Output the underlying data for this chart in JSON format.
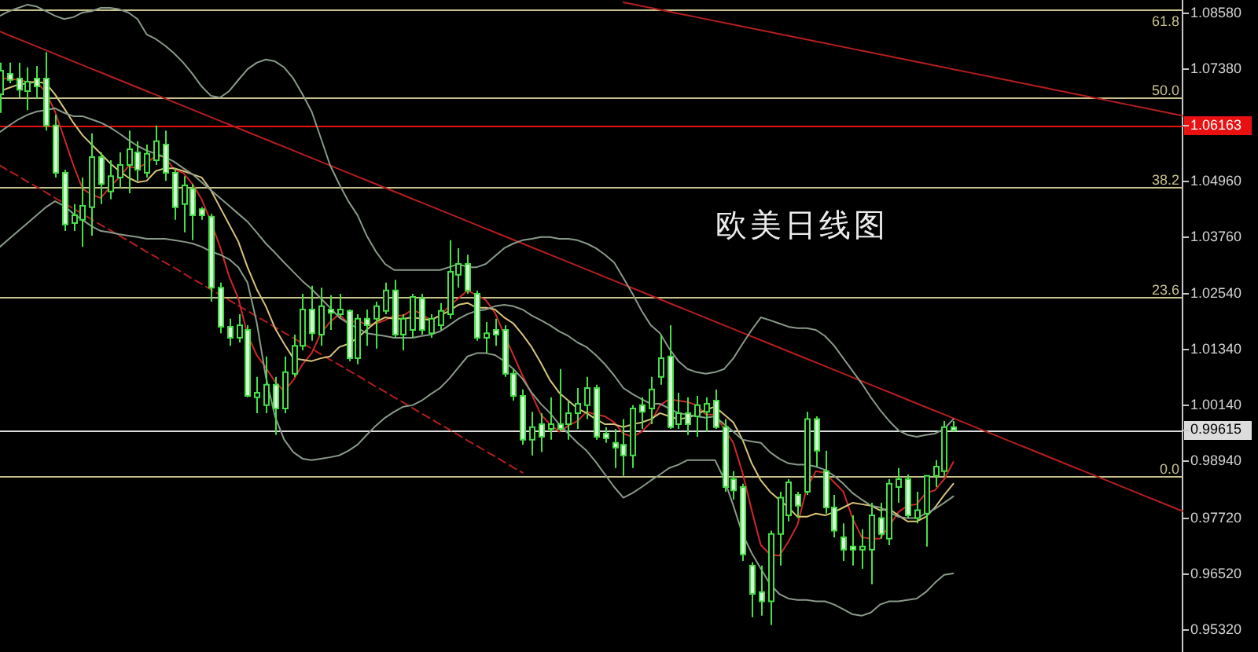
{
  "chart_data": {
    "type": "candlestick",
    "title": "欧美日线图",
    "categories": [
      null,
      null,
      null,
      null,
      null,
      null,
      null,
      null,
      null,
      null,
      null,
      null,
      null,
      null,
      null,
      null,
      null,
      null,
      null,
      null,
      null,
      null,
      null,
      null,
      null,
      null,
      null,
      null,
      null,
      null,
      null,
      null,
      null,
      null,
      null,
      null,
      null,
      null,
      null,
      null,
      null,
      null,
      null,
      null,
      null,
      null,
      null,
      null,
      null,
      null,
      null,
      null,
      null,
      null,
      null,
      null,
      null,
      null,
      null,
      null,
      null,
      null,
      null,
      null,
      null,
      null,
      null,
      null,
      null,
      null,
      null,
      null,
      null,
      null,
      null,
      null,
      null,
      null,
      null,
      null,
      null,
      null,
      null,
      null,
      null,
      null,
      null,
      null,
      null,
      null,
      null,
      null,
      null,
      null,
      null,
      null,
      null,
      null,
      null,
      null,
      null,
      null,
      null,
      null,
      null,
      null,
      null,
      null,
      null,
      null,
      null,
      null,
      null,
      null,
      null,
      null,
      null,
      null,
      null,
      null,
      null,
      null,
      null,
      null,
      null,
      null,
      null,
      null,
      null,
      null
    ],
    "color": "#45e045",
    "ohlc": [
      [
        1.0684,
        1.0752,
        1.0644,
        1.0735
      ],
      [
        1.0728,
        1.0752,
        1.0708,
        1.0715
      ],
      [
        1.0718,
        1.0752,
        1.0677,
        1.0694
      ],
      [
        1.0691,
        1.0742,
        1.065,
        1.0711
      ],
      [
        1.0718,
        1.0745,
        1.0674,
        1.0701
      ],
      [
        1.0718,
        1.0775,
        1.0606,
        1.0617
      ],
      [
        1.0617,
        1.064,
        1.0505,
        1.0515
      ],
      [
        1.0515,
        1.0522,
        1.039,
        1.0404
      ],
      [
        1.0407,
        1.0448,
        1.039,
        1.0424
      ],
      [
        1.0414,
        1.0505,
        1.0356,
        1.0444
      ],
      [
        1.0441,
        1.06,
        1.038,
        1.0549
      ],
      [
        1.0549,
        1.0559,
        1.0448,
        1.0491
      ],
      [
        1.0475,
        1.0542,
        1.0458,
        1.0508
      ],
      [
        1.0505,
        1.0559,
        1.0481,
        1.0532
      ],
      [
        1.0532,
        1.0606,
        1.0471,
        1.0566
      ],
      [
        1.0559,
        1.0583,
        1.0498,
        1.0522
      ],
      [
        1.0515,
        1.0576,
        1.0505,
        1.0556
      ],
      [
        1.0542,
        1.0617,
        1.0532,
        1.0583
      ],
      [
        1.0576,
        1.0606,
        1.0498,
        1.0515
      ],
      [
        1.0515,
        1.0525,
        1.0414,
        1.0441
      ],
      [
        1.0448,
        1.0508,
        1.0387,
        1.0488
      ],
      [
        1.0481,
        1.0491,
        1.037,
        1.0424
      ],
      [
        1.0437,
        1.0441,
        1.0414,
        1.0424
      ],
      [
        1.0421,
        1.0427,
        1.0238,
        1.0268
      ],
      [
        1.0268,
        1.0279,
        1.017,
        1.0184
      ],
      [
        1.0184,
        1.0201,
        1.0143,
        1.016
      ],
      [
        1.016,
        1.0211,
        1.015,
        1.0187
      ],
      [
        1.0177,
        1.0187,
        1.0032,
        1.0035
      ],
      [
        1.0032,
        1.0076,
        0.9998,
        1.0042
      ],
      [
        1.0015,
        1.012,
        0.9998,
        1.0059
      ],
      [
        1.0059,
        1.0076,
        0.9951,
        1.0008
      ],
      [
        1.0008,
        1.012,
        0.9998,
        1.0086
      ],
      [
        1.0083,
        1.0167,
        1.0076,
        1.0143
      ],
      [
        1.0143,
        1.0255,
        1.0133,
        1.0221
      ],
      [
        1.0221,
        1.0272,
        1.0154,
        1.017
      ],
      [
        1.0167,
        1.0268,
        1.0143,
        1.0228
      ],
      [
        1.0221,
        1.0252,
        1.0177,
        1.0214
      ],
      [
        1.0211,
        1.0255,
        1.0204,
        1.0221
      ],
      [
        1.0218,
        1.0221,
        1.011,
        1.0116
      ],
      [
        1.0116,
        1.0211,
        1.0103,
        1.0201
      ],
      [
        1.0201,
        1.0221,
        1.0143,
        1.0187
      ],
      [
        1.0201,
        1.0238,
        1.0137,
        1.0228
      ],
      [
        1.0218,
        1.0279,
        1.0211,
        1.0262
      ],
      [
        1.0262,
        1.0285,
        1.016,
        1.0167
      ],
      [
        1.0167,
        1.0211,
        1.0133,
        1.0201
      ],
      [
        1.0177,
        1.0255,
        1.016,
        1.0248
      ],
      [
        1.0245,
        1.0255,
        1.0167,
        1.0177
      ],
      [
        1.017,
        1.0211,
        1.016,
        1.0201
      ],
      [
        1.0187,
        1.0235,
        1.0177,
        1.0218
      ],
      [
        1.0211,
        1.037,
        1.0201,
        1.0302
      ],
      [
        1.0296,
        1.0353,
        1.0268,
        1.0319
      ],
      [
        1.0319,
        1.0339,
        1.0255,
        1.0262
      ],
      [
        1.0255,
        1.0262,
        1.0154,
        1.016
      ],
      [
        1.016,
        1.0194,
        1.0127,
        1.017
      ],
      [
        1.0177,
        1.0201,
        1.0143,
        1.0167
      ],
      [
        1.0177,
        1.0187,
        1.0076,
        1.0083
      ],
      [
        1.0083,
        1.0093,
        1.0025,
        1.0035
      ],
      [
        1.0035,
        1.0049,
        0.993,
        0.9941
      ],
      [
        0.9941,
        1.0001,
        0.9907,
        0.9968
      ],
      [
        0.9974,
        0.9998,
        0.9914,
        0.9947
      ],
      [
        0.9964,
        1.0032,
        0.9941,
        0.9974
      ],
      [
        0.9974,
        1.0093,
        0.9958,
        0.9964
      ],
      [
        0.9974,
        1.0025,
        0.9941,
        0.9998
      ],
      [
        0.9998,
        1.0052,
        0.9964,
        1.0018
      ],
      [
        1.0015,
        1.0076,
        0.9985,
        1.0052
      ],
      [
        1.0052,
        1.0059,
        0.9941,
        0.9947
      ],
      [
        0.9954,
        0.9968,
        0.9934,
        0.9944
      ],
      [
        0.9934,
        0.9964,
        0.988,
        0.9924
      ],
      [
        0.993,
        0.9985,
        0.9863,
        0.9907
      ],
      [
        0.9907,
        1.0015,
        0.988,
        1.0008
      ],
      [
        1.0015,
        1.0032,
        0.9964,
        1.0001
      ],
      [
        1.0008,
        1.0076,
        0.9974,
        1.0049
      ],
      [
        1.0076,
        1.0167,
        1.0059,
        1.0116
      ],
      [
        1.012,
        1.0187,
        0.9964,
        0.9968
      ],
      [
        0.9974,
        1.0042,
        0.9964,
        0.9998
      ],
      [
        0.9998,
        1.0032,
        0.9951,
        0.9974
      ],
      [
        0.9991,
        1.0035,
        0.9947,
        1.0015
      ],
      [
        1.0001,
        1.0032,
        0.9958,
        1.0018
      ],
      [
        1.0025,
        1.0049,
        0.9964,
        0.9968
      ],
      [
        0.9968,
        0.9985,
        0.9829,
        0.9839
      ],
      [
        0.9856,
        0.9873,
        0.9812,
        0.9832
      ],
      [
        0.9839,
        0.9846,
        0.968,
        0.9694
      ],
      [
        0.967,
        0.9677,
        0.9559,
        0.9609
      ],
      [
        0.9613,
        0.967,
        0.9562,
        0.9593
      ],
      [
        0.9593,
        0.9745,
        0.9542,
        0.9738
      ],
      [
        0.9738,
        0.9829,
        0.967,
        0.9816
      ],
      [
        0.9778,
        0.9856,
        0.9765,
        0.9849
      ],
      [
        0.9822,
        0.9829,
        0.9772,
        0.9799
      ],
      [
        0.9829,
        1.0001,
        0.9822,
        0.9985
      ],
      [
        0.9985,
        0.9991,
        0.9883,
        0.9917
      ],
      [
        0.9873,
        0.9917,
        0.9782,
        0.9795
      ],
      [
        0.9795,
        0.9822,
        0.9731,
        0.9745
      ],
      [
        0.9731,
        0.9761,
        0.968,
        0.9704
      ],
      [
        0.9711,
        0.9778,
        0.967,
        0.9704
      ],
      [
        0.9704,
        0.9748,
        0.9663,
        0.9711
      ],
      [
        0.9704,
        0.9805,
        0.963,
        0.9778
      ],
      [
        0.9772,
        0.9805,
        0.9728,
        0.9738
      ],
      [
        0.9728,
        0.9856,
        0.9714,
        0.9846
      ],
      [
        0.9839,
        0.988,
        0.9805,
        0.9856
      ],
      [
        0.9856,
        0.9866,
        0.9772,
        0.9778
      ],
      [
        0.9772,
        0.9829,
        0.9761,
        0.9789
      ],
      [
        0.9782,
        0.9863,
        0.9711,
        0.9863
      ],
      [
        0.9863,
        0.9897,
        0.9839,
        0.9883
      ],
      [
        0.9873,
        0.9981,
        0.9863,
        0.9968
      ],
      [
        0.9968,
        0.9981,
        0.9958,
        0.99615
      ],
      null,
      null,
      null,
      null,
      null,
      null,
      null,
      null,
      null,
      null,
      null,
      null,
      null,
      null,
      null,
      null,
      null,
      null,
      null,
      null,
      null,
      null,
      null,
      null,
      null
    ],
    "series": [
      {
        "type": "line",
        "color": "#8a9a8a",
        "values": [
          1.0853,
          1.0863,
          1.087,
          1.0877,
          1.0873,
          1.0863,
          1.0853,
          1.0846,
          1.085,
          1.086,
          1.0863,
          1.087,
          1.087,
          1.0867,
          1.086,
          1.0846,
          1.0813,
          1.0803,
          1.0789,
          1.0772,
          1.0752,
          1.0728,
          1.0701,
          1.0681,
          1.0677,
          1.0691,
          1.0715,
          1.0738,
          1.0752,
          1.0759,
          1.0755,
          1.0742,
          1.0718,
          1.0684,
          1.0647,
          1.059,
          1.0532,
          1.0491,
          1.0454,
          1.0424,
          1.038,
          1.0346,
          1.0319,
          1.0306,
          1.0306,
          1.0306,
          1.0306,
          1.0306,
          1.0306,
          1.0312,
          1.0319,
          1.0312,
          1.0312,
          1.0319,
          1.0336,
          1.0353,
          1.0363,
          1.037,
          1.0373,
          1.0377,
          1.0377,
          1.0373,
          1.0373,
          1.037,
          1.0363,
          1.0353,
          1.0339,
          1.0322,
          1.0289,
          1.0255,
          1.0218,
          1.0187,
          1.017,
          1.0137,
          1.011,
          1.0093,
          1.0086,
          1.0083,
          1.0086,
          1.0093,
          1.0116,
          1.0147,
          1.0177,
          1.0204,
          1.0198,
          1.0191,
          1.0184,
          1.0181,
          1.0181,
          1.0177,
          1.0164,
          1.0143,
          1.0116,
          1.0089,
          1.0062,
          1.0032,
          1.0005,
          0.9981,
          0.9961,
          0.9951,
          0.9947,
          0.9951,
          0.9954,
          0.9964,
          0.9985,
          null,
          null,
          null,
          null,
          null,
          null,
          null,
          null,
          null,
          null,
          null,
          null,
          null,
          null,
          null,
          null,
          null,
          null,
          null,
          null,
          null,
          null,
          null,
          null,
          null
        ]
      },
      {
        "type": "line",
        "color": "#8a9a8a",
        "values": [
          1.0603,
          1.0617,
          1.063,
          1.064,
          1.0647,
          1.065,
          1.0654,
          1.0644,
          1.0637,
          1.0637,
          1.063,
          1.0623,
          1.0613,
          1.06,
          1.0586,
          1.0573,
          1.0563,
          1.0556,
          1.0549,
          1.0539,
          1.0525,
          1.0512,
          1.0495,
          1.0478,
          1.0461,
          1.0444,
          1.0427,
          1.041,
          1.0387,
          1.0363,
          1.0343,
          1.0322,
          1.0302,
          1.0282,
          1.0265,
          1.0245,
          1.0225,
          1.0204,
          1.0191,
          1.0181,
          1.017,
          1.0167,
          1.0164,
          1.016,
          1.016,
          1.016,
          1.0164,
          1.0167,
          1.0174,
          1.0187,
          1.0201,
          1.0211,
          1.0218,
          1.0221,
          1.0228,
          1.0231,
          1.0228,
          1.0221,
          1.0208,
          1.0198,
          1.0187,
          1.0174,
          1.0164,
          1.015,
          1.014,
          1.0123,
          1.0103,
          1.0079,
          1.0052,
          1.0039,
          1.0028,
          1.0018,
          1.0018,
          1.0008,
          0.9998,
          0.9995,
          0.9991,
          0.9988,
          0.9991,
          0.9974,
          0.9958,
          0.9941,
          0.9937,
          0.9934,
          0.9914,
          0.99,
          0.989,
          0.9887,
          0.9887,
          0.9883,
          0.9876,
          0.9863,
          0.9846,
          0.9826,
          0.9812,
          0.9799,
          0.9795,
          0.9785,
          0.9775,
          0.9772,
          0.9772,
          0.9782,
          0.9792,
          0.9805,
          0.9819,
          null,
          null,
          null,
          null,
          null,
          null,
          null,
          null,
          null,
          null,
          null,
          null,
          null,
          null,
          null,
          null,
          null,
          null,
          null,
          null,
          null,
          null,
          null,
          null,
          null
        ]
      },
      {
        "type": "line",
        "color": "#8a9a8a",
        "values": [
          1.0356,
          1.0373,
          1.039,
          1.0407,
          1.0424,
          1.0441,
          1.0454,
          1.0444,
          1.0427,
          1.0414,
          1.04,
          1.039,
          1.0387,
          1.0383,
          1.038,
          1.0377,
          1.0373,
          1.0373,
          1.0373,
          1.037,
          1.0367,
          1.0363,
          1.0356,
          1.0346,
          1.0339,
          1.0329,
          1.0312,
          1.0279,
          1.0194,
          1.0076,
          0.9991,
          0.9941,
          0.9914,
          0.99,
          0.9897,
          0.99,
          0.9903,
          0.9907,
          0.9917,
          0.993,
          0.9951,
          0.9971,
          0.9988,
          1.0001,
          1.0012,
          1.0015,
          1.0025,
          1.0039,
          1.0052,
          1.0072,
          1.0096,
          1.012,
          1.0127,
          1.0127,
          1.0123,
          1.011,
          1.0093,
          1.0072,
          1.0042,
          1.0018,
          0.9998,
          0.9974,
          0.9954,
          0.9934,
          0.9917,
          0.9893,
          0.9866,
          0.9839,
          0.9816,
          0.9826,
          0.9839,
          0.9853,
          0.9866,
          0.988,
          0.9887,
          0.9897,
          0.9897,
          0.9897,
          0.9897,
          0.9856,
          0.9799,
          0.9738,
          0.9697,
          0.9663,
          0.963,
          0.9609,
          0.9599,
          0.9596,
          0.9596,
          0.9593,
          0.9593,
          0.9586,
          0.9576,
          0.9565,
          0.9562,
          0.9569,
          0.9586,
          0.9593,
          0.9593,
          0.9596,
          0.9599,
          0.9613,
          0.9633,
          0.965,
          0.9653,
          null,
          null,
          null,
          null,
          null,
          null,
          null,
          null,
          null,
          null,
          null,
          null,
          null,
          null,
          null,
          null,
          null,
          null,
          null,
          null,
          null,
          null,
          null,
          null,
          null
        ]
      },
      {
        "type": "line",
        "color": "#d8c47a",
        "values": [
          1.0691,
          1.0698,
          1.0705,
          1.0708,
          1.0711,
          1.0708,
          1.0684,
          1.0654,
          1.0623,
          1.0596,
          1.0576,
          1.0556,
          1.0536,
          1.0519,
          1.0505,
          1.0495,
          1.0498,
          1.0519,
          1.0525,
          1.0525,
          1.0519,
          1.0512,
          1.0505,
          1.0478,
          1.0441,
          1.0404,
          1.0367,
          1.0312,
          1.0265,
          1.0228,
          1.0181,
          1.0147,
          1.0116,
          1.0113,
          1.011,
          1.0116,
          1.012,
          1.014,
          1.0147,
          1.016,
          1.0177,
          1.0194,
          1.0204,
          1.0201,
          1.0201,
          1.0204,
          1.0201,
          1.0198,
          1.0208,
          1.0218,
          1.0231,
          1.0235,
          1.0225,
          1.0225,
          1.0221,
          1.0204,
          1.0191,
          1.0167,
          1.014,
          1.0106,
          1.0069,
          1.0042,
          1.0025,
          1.0008,
          0.9998,
          0.9985,
          0.9974,
          0.9974,
          0.9968,
          0.9974,
          0.9978,
          0.9985,
          0.9998,
          0.9991,
          0.9985,
          0.9988,
          0.9995,
          1.0005,
          1.0012,
          0.9995,
          0.9978,
          0.9941,
          0.989,
          0.9853,
          0.9829,
          0.9812,
          0.9795,
          0.9775,
          0.9775,
          0.9782,
          0.9778,
          0.9785,
          0.9795,
          0.9805,
          0.9802,
          0.9799,
          0.9789,
          0.9792,
          0.9778,
          0.9765,
          0.9765,
          0.9775,
          0.9795,
          0.9822,
          0.9846,
          null,
          null,
          null,
          null,
          null,
          null,
          null,
          null,
          null,
          null,
          null,
          null,
          null,
          null,
          null,
          null,
          null,
          null,
          null,
          null,
          null,
          null,
          null,
          null,
          null
        ]
      },
      {
        "type": "line",
        "color": "#d02828",
        "values": [
          1.0718,
          1.0718,
          1.0715,
          1.0711,
          1.0711,
          1.0688,
          1.0647,
          1.059,
          1.0532,
          1.0481,
          1.0468,
          1.0461,
          1.0485,
          1.0505,
          1.0529,
          1.0525,
          1.0536,
          1.0552,
          1.0549,
          1.0522,
          1.0515,
          1.0491,
          1.0458,
          1.041,
          1.0356,
          1.0292,
          1.0245,
          1.0167,
          1.0123,
          1.0096,
          1.0066,
          1.0045,
          1.0069,
          1.0103,
          1.0127,
          1.017,
          1.0194,
          1.0211,
          1.0191,
          1.0198,
          1.0187,
          1.0191,
          1.0198,
          1.0208,
          1.0208,
          1.0221,
          1.0211,
          1.0198,
          1.0208,
          1.0228,
          1.0245,
          1.0262,
          1.0252,
          1.0241,
          1.0214,
          1.0167,
          1.0123,
          1.0079,
          1.0039,
          0.9995,
          0.9974,
          0.9958,
          0.9971,
          0.9981,
          1.0001,
          0.9995,
          0.9991,
          0.9978,
          0.9954,
          0.9947,
          0.9958,
          0.9978,
          1.0015,
          1.0028,
          1.0025,
          1.0022,
          1.0015,
          0.9995,
          0.9995,
          0.9964,
          0.9934,
          0.987,
          0.9789,
          0.9714,
          0.9694,
          0.9691,
          0.9721,
          0.9758,
          0.9836,
          0.9873,
          0.987,
          0.9849,
          0.9829,
          0.9772,
          0.9731,
          0.9728,
          0.9728,
          0.9755,
          0.9785,
          0.9799,
          0.9802,
          0.9826,
          0.9832,
          0.9856,
          0.9893,
          null,
          null,
          null,
          null,
          null,
          null,
          null,
          null,
          null,
          null,
          null,
          null,
          null,
          null,
          null,
          null,
          null,
          null,
          null,
          null,
          null,
          null,
          null,
          null,
          null
        ]
      },
      {
        "type": "line",
        "color": "#b41e1e",
        "values": [
          1.0819,
          1.0811,
          1.0803,
          1.0795,
          1.0787,
          1.0779,
          1.0771,
          1.0763,
          1.0755,
          1.0747,
          1.0739,
          1.0731,
          1.0723,
          1.0715,
          1.0707,
          1.0699,
          1.0691,
          1.0683,
          1.0675,
          1.0667,
          1.0659,
          1.0651,
          1.0643,
          1.0635,
          1.0627,
          1.0619,
          1.0611,
          1.0603,
          1.0595,
          1.0587,
          1.0579,
          1.0571,
          1.0563,
          1.0555,
          1.0547,
          1.0539,
          1.0531,
          1.0523,
          1.0515,
          1.0507,
          1.0499,
          1.0491,
          1.0483,
          1.0475,
          1.0467,
          1.0459,
          1.0451,
          1.0443,
          1.0435,
          1.0427,
          1.0419,
          1.0411,
          1.0403,
          1.0395,
          1.0387,
          1.0379,
          1.0371,
          1.0363,
          1.0355,
          1.0347,
          1.0339,
          1.0331,
          1.0323,
          1.0315,
          1.0307,
          1.0299,
          1.0291,
          1.0283,
          1.0275,
          1.0267,
          1.0259,
          1.0251,
          1.0243,
          1.0235,
          1.0227,
          1.0219,
          1.0211,
          1.0203,
          1.0195,
          1.0187,
          1.0179,
          1.0171,
          1.0163,
          1.0155,
          1.0147,
          1.0139,
          1.0131,
          1.0123,
          1.0115,
          1.0107,
          1.0099,
          1.0091,
          1.0083,
          1.0075,
          1.0067,
          1.0059,
          1.0051,
          1.0043,
          1.0035,
          1.0027,
          1.0019,
          1.0011,
          1.0003,
          0.9995,
          0.9987,
          0.9979,
          0.9971,
          0.9963,
          0.9955,
          0.9947,
          0.9939,
          0.9931,
          0.9923,
          0.9915,
          0.9907,
          0.9899,
          0.9891,
          0.9883,
          0.9875,
          0.9867,
          0.9859,
          0.9851,
          0.9843,
          0.9835,
          0.9827,
          0.9819,
          0.9811,
          0.9803,
          0.9795,
          0.9787
        ]
      },
      {
        "type": "line",
        "color": "#b41e1e",
        "values": [
          null,
          null,
          null,
          null,
          null,
          null,
          null,
          null,
          null,
          null,
          null,
          null,
          null,
          null,
          null,
          null,
          null,
          null,
          null,
          null,
          null,
          null,
          null,
          null,
          null,
          null,
          null,
          null,
          null,
          null,
          null,
          null,
          null,
          null,
          null,
          null,
          null,
          null,
          null,
          null,
          null,
          null,
          null,
          null,
          null,
          null,
          null,
          null,
          null,
          null,
          null,
          null,
          null,
          null,
          null,
          null,
          null,
          null,
          null,
          null,
          null,
          null,
          null,
          null,
          null,
          null,
          null,
          null,
          1.0882,
          1.0878,
          1.0874,
          1.087,
          1.0866,
          1.0862,
          1.0858,
          1.0854,
          1.085,
          1.0846,
          1.0842,
          1.0838,
          1.0834,
          1.083,
          1.0826,
          1.0822,
          1.0818,
          1.0814,
          1.081,
          1.0806,
          1.0802,
          1.0798,
          1.0794,
          1.079,
          1.0786,
          1.0782,
          1.0778,
          1.0774,
          1.077,
          1.0766,
          1.0762,
          1.0758,
          1.0754,
          1.075,
          1.0746,
          1.0742,
          1.0738,
          1.0734,
          1.073,
          1.0726,
          1.0722,
          1.0718,
          1.0714,
          1.071,
          1.0706,
          1.0702,
          1.0698,
          1.0694,
          1.069,
          1.0686,
          1.0682,
          1.0678,
          1.0674,
          1.067,
          1.0666,
          1.0662,
          1.0658,
          1.0654,
          1.065,
          1.0646,
          1.0642,
          1.0638
        ]
      },
      {
        "type": "line",
        "color": "#b41e1e",
        "line_style": "dashed",
        "values": [
          1.0531,
          1.0519,
          1.0508,
          1.0496,
          1.0485,
          1.0473,
          1.0461,
          1.045,
          1.0438,
          1.0427,
          1.0415,
          1.0403,
          1.0392,
          1.038,
          1.0369,
          1.0357,
          1.0345,
          1.0334,
          1.0322,
          1.0311,
          1.0299,
          1.0287,
          1.0276,
          1.0264,
          1.0253,
          1.0241,
          1.0229,
          1.0218,
          1.0206,
          1.0195,
          1.0183,
          1.0171,
          1.016,
          1.0148,
          1.0137,
          1.0125,
          1.0113,
          1.0102,
          1.009,
          1.0079,
          1.0067,
          1.0055,
          1.0044,
          1.0032,
          1.0021,
          1.0009,
          0.9997,
          0.9986,
          0.9974,
          0.9963,
          0.9951,
          0.9939,
          0.9928,
          0.9916,
          0.9905,
          0.9893,
          0.9881,
          0.987,
          null,
          null,
          null,
          null,
          null,
          null,
          null,
          null,
          null,
          null,
          null,
          null,
          null,
          null,
          null,
          null,
          null,
          null,
          null,
          null,
          null,
          null,
          null,
          null,
          null,
          null,
          null,
          null,
          null,
          null,
          null,
          null,
          null,
          null,
          null,
          null,
          null,
          null,
          null,
          null,
          null,
          null,
          null,
          null,
          null,
          null,
          null,
          null,
          null,
          null,
          null,
          null,
          null,
          null,
          null,
          null,
          null,
          null,
          null,
          null,
          null,
          null,
          null,
          null,
          null,
          null,
          null,
          null,
          null,
          null,
          null,
          null
        ]
      }
    ],
    "ylim": [
      0.9484,
      1.0887
    ],
    "yticks": [
      {
        "value": 1.0858,
        "label": "1.08580"
      },
      {
        "value": 1.0738,
        "label": "1.07380"
      },
      1.06163,
      {
        "value": 1.0496,
        "label": "1.04960"
      },
      {
        "value": 1.0376,
        "label": "1.03760"
      },
      {
        "value": 1.0254,
        "label": "1.02540"
      },
      {
        "value": 1.0134,
        "label": "1.01340"
      },
      {
        "value": 1.0014,
        "label": "1.00140"
      },
      0.99615,
      {
        "value": 0.9894,
        "label": "0.98940"
      },
      {
        "value": 0.9772,
        "label": "0.97720"
      },
      {
        "value": 0.9652,
        "label": "0.96520"
      },
      {
        "value": 0.9532,
        "label": "0.95320"
      }
    ],
    "ref_lines": [
      {
        "axis": "y",
        "value": 1.0868,
        "color": "#c8c28c"
      },
      {
        "axis": "y",
        "value": 1.0679,
        "color": "#c8c28c"
      },
      {
        "axis": "y",
        "value": 1.0485,
        "color": "#c8c28c"
      },
      {
        "axis": "y",
        "value": 1.0247,
        "color": "#c8c28c"
      },
      {
        "axis": "y",
        "value": 0.9863,
        "color": "#c8c28c"
      },
      {
        "axis": "y",
        "value": 1.06163,
        "color": "#e81010"
      },
      {
        "axis": "y",
        "value": 0.99615,
        "color": "#dcdcdc"
      }
    ],
    "annotations": [
      {
        "text": "61.8",
        "y": 1.0868
      },
      {
        "text": "50.0",
        "y": 1.0679
      },
      {
        "text": "38.2",
        "y": 1.0485
      },
      {
        "text": "23.6",
        "y": 1.0247
      },
      {
        "text": "0.0",
        "y": 0.9863
      }
    ],
    "tick_labels": "y"
  }
}
